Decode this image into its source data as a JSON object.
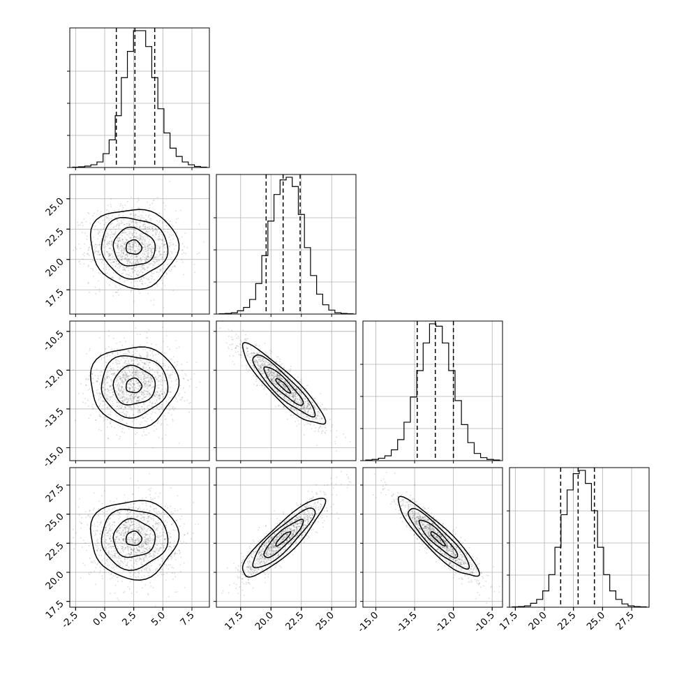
{
  "chart_data": {
    "type": "corner",
    "title": "",
    "grid": true,
    "legend": "none",
    "colors": {
      "line": "#000000",
      "grid": "#b0b0b0",
      "points": "#000000",
      "background": "#ffffff"
    },
    "parameters": [
      {
        "range": [
          -3.0,
          9.0
        ],
        "ticks": [
          "-2.5",
          "0.0",
          "2.5",
          "5.0",
          "7.5"
        ],
        "tick_values": [
          -2.5,
          0.0,
          2.5,
          5.0,
          7.5
        ]
      },
      {
        "range": [
          15.5,
          27.0
        ],
        "ticks": [
          "17.5",
          "20.0",
          "22.5",
          "25.0"
        ],
        "tick_values": [
          17.5,
          20.0,
          22.5,
          25.0
        ]
      },
      {
        "range": [
          -15.5,
          -10.1
        ],
        "ticks": [
          "-15.0",
          "-13.5",
          "-12.0",
          "-10.5"
        ],
        "tick_values": [
          -15.0,
          -13.5,
          -12.0,
          -10.5
        ]
      },
      {
        "range": [
          17.0,
          29.0
        ],
        "ticks": [
          "17.5",
          "20.0",
          "22.5",
          "25.0",
          "27.5"
        ],
        "tick_values": [
          17.5,
          20.0,
          22.5,
          25.0,
          27.5
        ]
      }
    ],
    "quantiles": [
      [
        1.0,
        2.6,
        4.3
      ],
      [
        19.6,
        21.0,
        22.4
      ],
      [
        -13.4,
        -12.7,
        -12.0
      ],
      [
        21.4,
        22.9,
        24.3
      ]
    ],
    "histograms": [
      [
        0.5,
        1,
        2,
        4,
        8,
        20,
        40,
        75,
        130,
        168,
        198,
        198,
        175,
        130,
        85,
        50,
        28,
        16,
        8,
        4,
        1.5,
        0.5
      ],
      [
        0.5,
        1,
        2,
        5,
        10,
        22,
        46,
        88,
        140,
        180,
        202,
        206,
        192,
        150,
        100,
        58,
        30,
        14,
        6,
        2,
        1,
        0.5
      ],
      [
        1,
        2,
        4,
        8,
        18,
        35,
        64,
        106,
        150,
        196,
        228,
        224,
        196,
        150,
        100,
        60,
        30,
        12,
        5,
        2,
        1
      ],
      [
        0.5,
        1,
        2,
        6,
        12,
        25,
        50,
        92,
        142,
        180,
        205,
        210,
        190,
        148,
        92,
        50,
        25,
        12,
        5,
        2,
        1,
        0.5
      ]
    ],
    "joint": [
      {
        "row": 1,
        "col": 0,
        "mean": [
          2.5,
          21.0
        ],
        "sd": [
          1.5,
          1.3
        ],
        "rho": -0.05
      },
      {
        "row": 2,
        "col": 0,
        "mean": [
          2.5,
          -12.6
        ],
        "sd": [
          1.5,
          0.62
        ],
        "rho": 0.0
      },
      {
        "row": 2,
        "col": 1,
        "mean": [
          21.0,
          -12.6
        ],
        "sd": [
          1.35,
          0.62
        ],
        "rho": -0.9
      },
      {
        "row": 3,
        "col": 0,
        "mean": [
          2.5,
          22.9
        ],
        "sd": [
          1.5,
          1.35
        ],
        "rho": 0.0
      },
      {
        "row": 3,
        "col": 1,
        "mean": [
          21.0,
          22.9
        ],
        "sd": [
          1.35,
          1.35
        ],
        "rho": 0.88
      },
      {
        "row": 3,
        "col": 2,
        "mean": [
          -12.6,
          22.9
        ],
        "sd": [
          0.62,
          1.35
        ],
        "rho": -0.9
      }
    ]
  }
}
